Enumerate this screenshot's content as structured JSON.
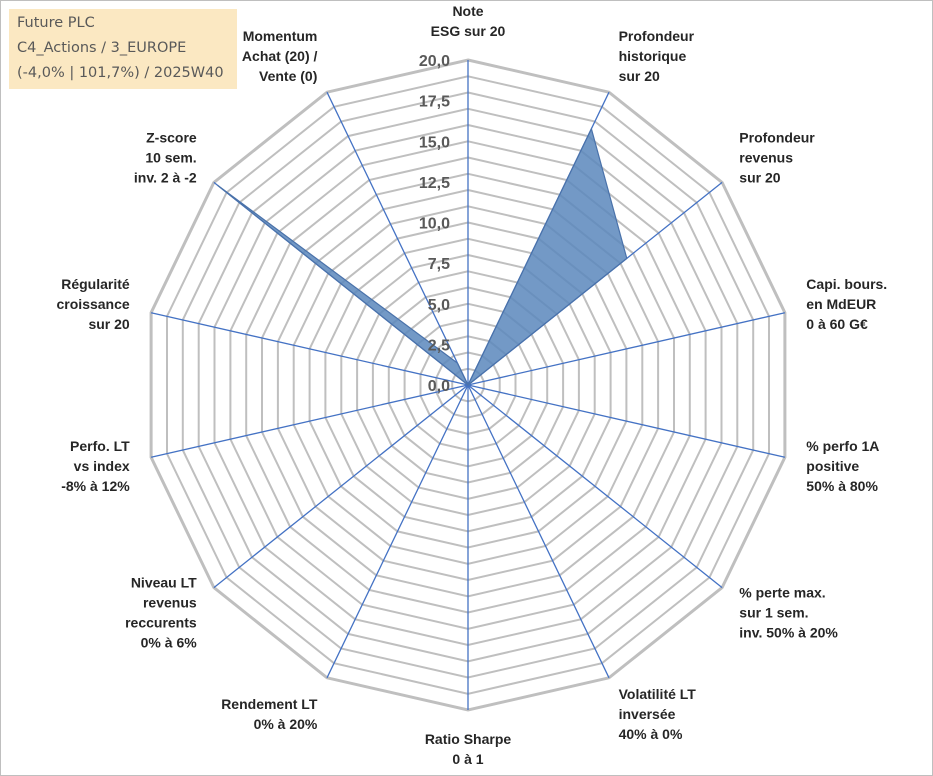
{
  "info_box": {
    "line1": "Future PLC",
    "line2": "C4_Actions / 3_EUROPE",
    "line3": "(-4,0% | 101,7%) / 2025W40"
  },
  "colors": {
    "grid": "#bfbfbf",
    "spoke": "#4472c4",
    "fill": "#5b87bc",
    "fill_stroke": "#4a72aa",
    "axis_text": "#262626",
    "tick_text": "#595959",
    "info_bg": "#fbe8c2"
  },
  "chart_data": {
    "type": "radar",
    "title": "",
    "rlim": [
      0,
      20
    ],
    "tick_values": [
      0,
      2.5,
      5,
      7.5,
      10,
      12.5,
      15,
      17.5,
      20
    ],
    "tick_labels": [
      "0,0",
      "2,5",
      "5,0",
      "7,5",
      "10,0",
      "12,5",
      "15,0",
      "17,5",
      "20,0"
    ],
    "grid": true,
    "categories": [
      [
        "Note",
        "ESG sur 20"
      ],
      [
        "Profondeur",
        "historique",
        "sur 20"
      ],
      [
        "Profondeur",
        "revenus",
        "sur 20"
      ],
      [
        "Capi. bours.",
        "en MdEUR",
        "0 à 60 G€"
      ],
      [
        "% perfo 1A",
        "positive",
        "50% à 80%"
      ],
      [
        "% perte max.",
        "sur 1 sem.",
        "inv. 50% à 20%"
      ],
      [
        "Volatilité LT",
        "inversée",
        "40% à 0%"
      ],
      [
        "Ratio Sharpe",
        "0 à 1"
      ],
      [
        "Rendement LT",
        "0% à 20%"
      ],
      [
        "Niveau LT",
        "revenus",
        "reccurents",
        "0% à 6%"
      ],
      [
        "Perfo. LT",
        "vs index",
        "-8% à 12%"
      ],
      [
        "Régularité",
        "croissance",
        "sur 20"
      ],
      [
        "Z-score",
        "10 sem.",
        "inv. 2 à -2"
      ],
      [
        "Momentum",
        "Achat (20) /",
        "Vente (0)"
      ]
    ],
    "series": [
      {
        "values": [
          0,
          17.5,
          12.5,
          0,
          0,
          0,
          0,
          0,
          0,
          0,
          0,
          0,
          19.7,
          1.5
        ]
      }
    ]
  }
}
